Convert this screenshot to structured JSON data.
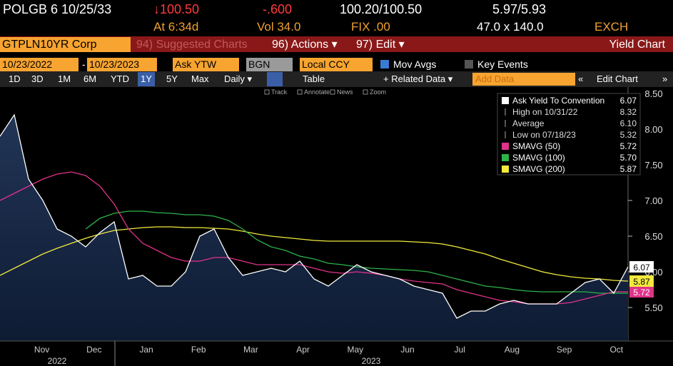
{
  "header": {
    "ticker": "POLGB 6 10/25/33",
    "price": "↓100.50",
    "change": "-.600",
    "bid_ask": "100.20/100.50",
    "yield_bid_ask": "5.97/5.93",
    "time": "At 6:34d",
    "volume": "Vol 34.0",
    "fix": "FIX .00",
    "size": "47.0 x 140.0",
    "venue": "EXCH"
  },
  "toolbar": {
    "security": "GTPLN10YR Corp",
    "buttons": [
      "94) Suggested Charts",
      "96) Actions ▾",
      "97) Edit ▾"
    ],
    "view": "Yield Chart"
  },
  "controls": {
    "start_date": "10/23/2022",
    "separator": "-",
    "end_date": "10/23/2023",
    "field": "Ask YTW",
    "source": "BGN",
    "currency": "Local CCY",
    "options": [
      "Mov Avgs",
      "Key Events"
    ]
  },
  "ranges": {
    "periods": [
      "1D",
      "3D",
      "1M",
      "6M",
      "YTD",
      "1Y",
      "5Y",
      "Max"
    ],
    "selected": 5,
    "frequency": "Daily ▾",
    "table": "Table",
    "related": "+ Related Data ▾",
    "add_data": "Add Data",
    "edit_chart": "Edit Chart"
  },
  "chart_tools": [
    "Track",
    "Annotate",
    "News",
    "Zoom"
  ],
  "chart_data": {
    "type": "line",
    "months": [
      "Nov",
      "Dec",
      "Jan",
      "Feb",
      "Mar",
      "Apr",
      "May",
      "Jun",
      "Jul",
      "Aug",
      "Sep",
      "Oct"
    ],
    "years": [
      "2022",
      "2023"
    ],
    "ylim": [
      5.03,
      8.59
    ],
    "yticks": [
      {
        "value": 5.5,
        "label": "5.50"
      },
      {
        "value": 6,
        "label": "6.00"
      },
      {
        "value": 6.5,
        "label": "6.50"
      },
      {
        "value": 7,
        "label": "7.00"
      },
      {
        "value": 7.5,
        "label": "7.50"
      },
      {
        "value": 8,
        "label": "8.00"
      },
      {
        "value": 8.5,
        "label": "8.50"
      }
    ],
    "series": [
      {
        "name": "Ask Yield To Convention",
        "color": "#ffffff",
        "area": true,
        "flag": true,
        "value_label": "6.07",
        "values": [
          7.9,
          8.2,
          7.3,
          7.0,
          6.6,
          6.5,
          6.35,
          6.55,
          6.7,
          5.9,
          5.95,
          5.8,
          5.8,
          6.0,
          6.5,
          6.6,
          6.2,
          5.95,
          6.0,
          6.05,
          6.0,
          6.15,
          5.9,
          5.8,
          5.95,
          6.1,
          6.0,
          5.95,
          5.9,
          5.8,
          5.75,
          5.7,
          5.35,
          5.45,
          5.45,
          5.55,
          5.6,
          5.55,
          5.55,
          5.55,
          5.7,
          5.85,
          5.9,
          5.7,
          6.07
        ]
      },
      {
        "name": "SMAVG (50)",
        "color": "#e0338a",
        "area": false,
        "flag": true,
        "value_label": "5.72",
        "values": [
          7.0,
          7.1,
          7.2,
          7.3,
          7.37,
          7.4,
          7.35,
          7.2,
          6.95,
          6.6,
          6.4,
          6.3,
          6.2,
          6.15,
          6.15,
          6.2,
          6.2,
          6.15,
          6.1,
          6.1,
          6.1,
          6.1,
          6.05,
          6.0,
          5.98,
          6.0,
          5.98,
          5.95,
          5.9,
          5.87,
          5.85,
          5.83,
          5.75,
          5.7,
          5.65,
          5.6,
          5.58,
          5.55,
          5.55,
          5.55,
          5.57,
          5.62,
          5.67,
          5.72,
          5.72
        ]
      },
      {
        "name": "SMAVG (100)",
        "color": "#2db34a",
        "area": false,
        "flag": false,
        "value_label": "5.70",
        "values": [
          null,
          null,
          null,
          null,
          null,
          null,
          6.6,
          6.75,
          6.82,
          6.85,
          6.85,
          6.83,
          6.82,
          6.8,
          6.8,
          6.78,
          6.72,
          6.6,
          6.45,
          6.35,
          6.3,
          6.22,
          6.18,
          6.12,
          6.1,
          6.07,
          6.05,
          6.04,
          6.03,
          6.02,
          6.0,
          5.95,
          5.9,
          5.85,
          5.8,
          5.78,
          5.75,
          5.73,
          5.72,
          5.72,
          5.72,
          5.72,
          5.7,
          5.7,
          5.7
        ]
      },
      {
        "name": "SMAVG (200)",
        "color": "#f2ea3c",
        "area": false,
        "flag": true,
        "value_label": "5.87",
        "values": [
          5.95,
          6.05,
          6.15,
          6.25,
          6.33,
          6.4,
          6.47,
          6.53,
          6.58,
          6.6,
          6.62,
          6.63,
          6.63,
          6.62,
          6.62,
          6.61,
          6.6,
          6.57,
          6.53,
          6.5,
          6.48,
          6.46,
          6.44,
          6.43,
          6.43,
          6.43,
          6.43,
          6.43,
          6.43,
          6.42,
          6.41,
          6.39,
          6.35,
          6.3,
          6.25,
          6.18,
          6.12,
          6.06,
          6.0,
          5.96,
          5.93,
          5.91,
          5.9,
          5.88,
          5.87
        ]
      }
    ],
    "stats": [
      {
        "label": "High on 10/31/22",
        "value": "8.32"
      },
      {
        "label": "Average",
        "value": "6.10"
      },
      {
        "label": "Low on 07/18/23",
        "value": "5.32"
      }
    ]
  }
}
